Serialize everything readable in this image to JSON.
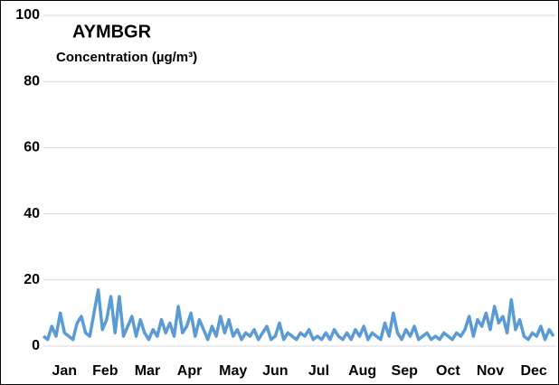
{
  "chart_data": {
    "type": "line",
    "title": "AYMBGR",
    "y_label": "Concentration (µg/m³)",
    "x": [
      1,
      4,
      7,
      10,
      13,
      16,
      19,
      22,
      25,
      28,
      31,
      34,
      37,
      40,
      43,
      46,
      49,
      52,
      55,
      58,
      61,
      64,
      67,
      70,
      73,
      76,
      79,
      82,
      85,
      88,
      91,
      94,
      97,
      100,
      103,
      106,
      109,
      112,
      115,
      118,
      121,
      124,
      127,
      130,
      133,
      136,
      139,
      142,
      145,
      148,
      151,
      154,
      157,
      160,
      163,
      166,
      169,
      172,
      175,
      178,
      181,
      184,
      187,
      190,
      193,
      196,
      199,
      202,
      205,
      208,
      211,
      214,
      217,
      220,
      223,
      226,
      229,
      232,
      235,
      238,
      241,
      244,
      247,
      250,
      253,
      256,
      259,
      262,
      265,
      268,
      271,
      274,
      277,
      280,
      283,
      286,
      289,
      292,
      295,
      298,
      301,
      304,
      307,
      310,
      313,
      316,
      319,
      322,
      325,
      328,
      331,
      334,
      337,
      340,
      343,
      346,
      349,
      352,
      355,
      358,
      361,
      364
    ],
    "series": [
      {
        "name": "AYMBGR",
        "color": "#5b9bd5",
        "values": [
          3,
          2,
          6,
          3,
          10,
          4,
          3,
          2,
          7,
          9,
          4,
          3,
          10,
          17,
          5,
          8,
          15,
          4,
          15,
          3,
          6,
          9,
          3,
          8,
          4,
          2,
          5,
          3,
          8,
          4,
          7,
          3,
          12,
          4,
          6,
          10,
          3,
          8,
          5,
          2,
          6,
          3,
          9,
          4,
          8,
          3,
          5,
          2,
          4,
          3,
          5,
          2,
          4,
          6,
          2,
          3,
          7,
          2,
          4,
          3,
          2,
          4,
          3,
          5,
          2,
          3,
          2,
          4,
          2,
          5,
          3,
          2,
          4,
          2,
          5,
          3,
          6,
          2,
          4,
          3,
          2,
          7,
          3,
          10,
          4,
          2,
          5,
          3,
          6,
          2,
          3,
          4,
          2,
          3,
          2,
          4,
          3,
          2,
          4,
          3,
          5,
          9,
          3,
          8,
          6,
          10,
          5,
          12,
          7,
          9,
          4,
          14,
          5,
          8,
          3,
          2,
          4,
          3,
          6,
          2,
          5,
          3
        ]
      }
    ],
    "xlim": [
      1,
      366
    ],
    "xticks": [
      {
        "value": 16,
        "label": "Jan"
      },
      {
        "value": 45,
        "label": "Feb"
      },
      {
        "value": 75,
        "label": "Mar"
      },
      {
        "value": 105,
        "label": "Apr"
      },
      {
        "value": 136,
        "label": "May"
      },
      {
        "value": 166,
        "label": "Jun"
      },
      {
        "value": 197,
        "label": "Jul"
      },
      {
        "value": 228,
        "label": "Aug"
      },
      {
        "value": 258,
        "label": "Sep"
      },
      {
        "value": 289,
        "label": "Oct"
      },
      {
        "value": 319,
        "label": "Nov"
      },
      {
        "value": 350,
        "label": "Dec"
      }
    ],
    "ylim": [
      0,
      100
    ],
    "yticks": [
      0,
      20,
      40,
      60,
      80,
      100
    ],
    "grid": true
  }
}
